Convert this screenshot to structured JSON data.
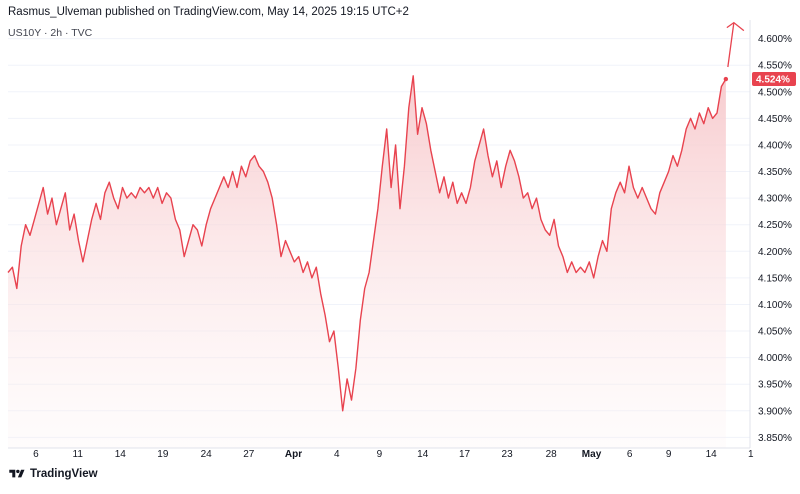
{
  "header": {
    "published": "Rasmus_Ulveman published on TradingView.com, May 14, 2025 19:15 UTC+2",
    "symbol": "US10Y · 2h · TVC"
  },
  "footer": {
    "brand": "TradingView"
  },
  "colors": {
    "line": "#e8434f",
    "fill_top": "#f7c9cc",
    "price_label_bg": "#e8434f",
    "axis_text": "#131722",
    "grid": "#f0f3fa"
  },
  "chart_data": {
    "type": "area",
    "title": "",
    "xlabel": "",
    "ylabel": "",
    "ylim": [
      3.83,
      4.635
    ],
    "y_ticks": [
      "4.600%",
      "4.550%",
      "4.500%",
      "4.450%",
      "4.400%",
      "4.350%",
      "4.300%",
      "4.250%",
      "4.200%",
      "4.150%",
      "4.100%",
      "4.050%",
      "4.000%",
      "3.950%",
      "3.900%",
      "3.850%"
    ],
    "y_tick_values": [
      4.6,
      4.55,
      4.5,
      4.45,
      4.4,
      4.35,
      4.3,
      4.25,
      4.2,
      4.15,
      4.1,
      4.05,
      4.0,
      3.95,
      3.9,
      3.85
    ],
    "x_ticks": [
      "6",
      "11",
      "14",
      "19",
      "24",
      "27",
      "Apr",
      "4",
      "9",
      "14",
      "17",
      "23",
      "28",
      "May",
      "6",
      "9",
      "14",
      "1"
    ],
    "x_tick_bold": [
      "Apr",
      "May"
    ],
    "last_price_label": "4.524%",
    "last_price": 4.524,
    "x_index_range": [
      0,
      100
    ],
    "x_tick_index": [
      3.8,
      9.5,
      15.3,
      21.1,
      27.0,
      32.8,
      38.9,
      44.8,
      50.6,
      56.5,
      62.2,
      68.0,
      74.0,
      79.5,
      84.7,
      90.0,
      95.8,
      101.2
    ],
    "annotation": "red upward arrow",
    "series": [
      {
        "values": [
          [
            0.0,
            4.16
          ],
          [
            0.6,
            4.17
          ],
          [
            1.2,
            4.13
          ],
          [
            1.8,
            4.21
          ],
          [
            2.4,
            4.25
          ],
          [
            3.0,
            4.23
          ],
          [
            3.6,
            4.26
          ],
          [
            4.2,
            4.29
          ],
          [
            4.8,
            4.32
          ],
          [
            5.4,
            4.27
          ],
          [
            6.0,
            4.3
          ],
          [
            6.6,
            4.25
          ],
          [
            7.2,
            4.28
          ],
          [
            7.8,
            4.31
          ],
          [
            8.4,
            4.24
          ],
          [
            9.0,
            4.27
          ],
          [
            9.6,
            4.22
          ],
          [
            10.2,
            4.18
          ],
          [
            10.8,
            4.22
          ],
          [
            11.4,
            4.26
          ],
          [
            12.0,
            4.29
          ],
          [
            12.6,
            4.26
          ],
          [
            13.2,
            4.31
          ],
          [
            13.8,
            4.33
          ],
          [
            14.4,
            4.3
          ],
          [
            15.0,
            4.28
          ],
          [
            15.6,
            4.32
          ],
          [
            16.2,
            4.3
          ],
          [
            16.8,
            4.31
          ],
          [
            17.4,
            4.3
          ],
          [
            18.0,
            4.32
          ],
          [
            18.6,
            4.31
          ],
          [
            19.2,
            4.32
          ],
          [
            19.8,
            4.3
          ],
          [
            20.4,
            4.32
          ],
          [
            21.0,
            4.29
          ],
          [
            21.6,
            4.31
          ],
          [
            22.2,
            4.3
          ],
          [
            22.8,
            4.26
          ],
          [
            23.4,
            4.24
          ],
          [
            24.0,
            4.19
          ],
          [
            24.6,
            4.22
          ],
          [
            25.2,
            4.25
          ],
          [
            25.8,
            4.24
          ],
          [
            26.4,
            4.21
          ],
          [
            27.0,
            4.25
          ],
          [
            27.6,
            4.28
          ],
          [
            28.2,
            4.3
          ],
          [
            28.8,
            4.32
          ],
          [
            29.4,
            4.34
          ],
          [
            30.0,
            4.32
          ],
          [
            30.6,
            4.35
          ],
          [
            31.2,
            4.32
          ],
          [
            31.8,
            4.36
          ],
          [
            32.4,
            4.34
          ],
          [
            33.0,
            4.37
          ],
          [
            33.6,
            4.38
          ],
          [
            34.2,
            4.36
          ],
          [
            34.8,
            4.35
          ],
          [
            35.4,
            4.33
          ],
          [
            36.0,
            4.3
          ],
          [
            36.6,
            4.25
          ],
          [
            37.2,
            4.19
          ],
          [
            37.8,
            4.22
          ],
          [
            38.4,
            4.2
          ],
          [
            39.0,
            4.18
          ],
          [
            39.6,
            4.19
          ],
          [
            40.2,
            4.16
          ],
          [
            40.8,
            4.18
          ],
          [
            41.4,
            4.15
          ],
          [
            42.0,
            4.17
          ],
          [
            42.6,
            4.12
          ],
          [
            43.2,
            4.08
          ],
          [
            43.8,
            4.03
          ],
          [
            44.4,
            4.05
          ],
          [
            45.0,
            3.98
          ],
          [
            45.6,
            3.9
          ],
          [
            46.2,
            3.96
          ],
          [
            46.8,
            3.92
          ],
          [
            47.4,
            3.98
          ],
          [
            48.0,
            4.07
          ],
          [
            48.6,
            4.13
          ],
          [
            49.2,
            4.16
          ],
          [
            49.8,
            4.22
          ],
          [
            50.4,
            4.28
          ],
          [
            51.0,
            4.36
          ],
          [
            51.6,
            4.43
          ],
          [
            52.2,
            4.32
          ],
          [
            52.8,
            4.4
          ],
          [
            53.4,
            4.28
          ],
          [
            54.0,
            4.36
          ],
          [
            54.6,
            4.47
          ],
          [
            55.2,
            4.53
          ],
          [
            55.8,
            4.42
          ],
          [
            56.4,
            4.47
          ],
          [
            57.0,
            4.44
          ],
          [
            57.6,
            4.39
          ],
          [
            58.2,
            4.35
          ],
          [
            58.8,
            4.31
          ],
          [
            59.4,
            4.34
          ],
          [
            60.0,
            4.3
          ],
          [
            60.6,
            4.33
          ],
          [
            61.2,
            4.29
          ],
          [
            61.8,
            4.31
          ],
          [
            62.4,
            4.29
          ],
          [
            63.0,
            4.32
          ],
          [
            63.6,
            4.37
          ],
          [
            64.2,
            4.4
          ],
          [
            64.8,
            4.43
          ],
          [
            65.4,
            4.38
          ],
          [
            66.0,
            4.34
          ],
          [
            66.6,
            4.37
          ],
          [
            67.2,
            4.32
          ],
          [
            67.8,
            4.36
          ],
          [
            68.4,
            4.39
          ],
          [
            69.0,
            4.37
          ],
          [
            69.6,
            4.34
          ],
          [
            70.2,
            4.3
          ],
          [
            70.8,
            4.31
          ],
          [
            71.4,
            4.28
          ],
          [
            72.0,
            4.3
          ],
          [
            72.6,
            4.26
          ],
          [
            73.2,
            4.24
          ],
          [
            73.8,
            4.23
          ],
          [
            74.4,
            4.26
          ],
          [
            75.0,
            4.21
          ],
          [
            75.6,
            4.19
          ],
          [
            76.2,
            4.16
          ],
          [
            76.8,
            4.18
          ],
          [
            77.4,
            4.16
          ],
          [
            78.0,
            4.17
          ],
          [
            78.6,
            4.16
          ],
          [
            79.2,
            4.18
          ],
          [
            79.8,
            4.15
          ],
          [
            80.4,
            4.19
          ],
          [
            81.0,
            4.22
          ],
          [
            81.6,
            4.2
          ],
          [
            82.2,
            4.28
          ],
          [
            82.8,
            4.31
          ],
          [
            83.4,
            4.33
          ],
          [
            84.0,
            4.31
          ],
          [
            84.6,
            4.36
          ],
          [
            85.2,
            4.32
          ],
          [
            85.8,
            4.3
          ],
          [
            86.4,
            4.32
          ],
          [
            87.0,
            4.3
          ],
          [
            87.6,
            4.28
          ],
          [
            88.2,
            4.27
          ],
          [
            88.8,
            4.31
          ],
          [
            89.4,
            4.33
          ],
          [
            90.0,
            4.35
          ],
          [
            90.6,
            4.38
          ],
          [
            91.2,
            4.36
          ],
          [
            91.8,
            4.39
          ],
          [
            92.4,
            4.43
          ],
          [
            93.0,
            4.45
          ],
          [
            93.6,
            4.43
          ],
          [
            94.2,
            4.46
          ],
          [
            94.8,
            4.44
          ],
          [
            95.4,
            4.47
          ],
          [
            96.0,
            4.45
          ],
          [
            96.6,
            4.46
          ],
          [
            97.2,
            4.51
          ],
          [
            97.8,
            4.524
          ]
        ]
      }
    ]
  }
}
